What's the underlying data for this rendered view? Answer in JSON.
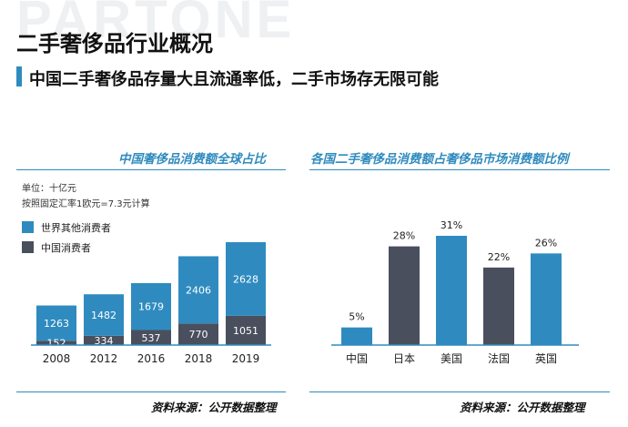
{
  "watermark": "PARTONE",
  "title": "二手奢侈品行业概况",
  "subtitle": "中国二手奢侈品存量大且流通率低，二手市场存无限可能",
  "colors": {
    "blue": "#2f8bbf",
    "dark": "#4a4f5e",
    "axis": "#2f8bbf"
  },
  "left_panel": {
    "title": "中国奢侈品消费额全球占比",
    "unit_note": "单位：十亿元",
    "rate_note": "按照固定汇率1欧元=7.3元计算",
    "legend": [
      "世界其他消费者",
      "中国消费者"
    ],
    "source": "资料来源：公开数据整理"
  },
  "right_panel": {
    "title": "各国二手奢侈品消费额占奢侈品市场消费额比例",
    "source": "资料来源：公开数据整理"
  },
  "chart_data": [
    {
      "type": "bar",
      "stacked": true,
      "categories": [
        "2008",
        "2012",
        "2016",
        "2018",
        "2019"
      ],
      "series": [
        {
          "name": "中国消费者",
          "values": [
            152,
            334,
            537,
            770,
            1051
          ],
          "color": "#4a4f5e"
        },
        {
          "name": "世界其他消费者",
          "values": [
            1263,
            1482,
            1679,
            2406,
            2628
          ],
          "color": "#2f8bbf"
        }
      ],
      "ylim": [
        0,
        3679
      ]
    },
    {
      "type": "bar",
      "categories": [
        "中国",
        "日本",
        "美国",
        "法国",
        "英国"
      ],
      "values": [
        5,
        28,
        31,
        22,
        26
      ],
      "value_labels": [
        "5%",
        "28%",
        "31%",
        "22%",
        "26%"
      ],
      "colors": [
        "#2f8bbf",
        "#4a4f5e",
        "#2f8bbf",
        "#4a4f5e",
        "#2f8bbf"
      ],
      "ylim": [
        0,
        31
      ]
    }
  ]
}
